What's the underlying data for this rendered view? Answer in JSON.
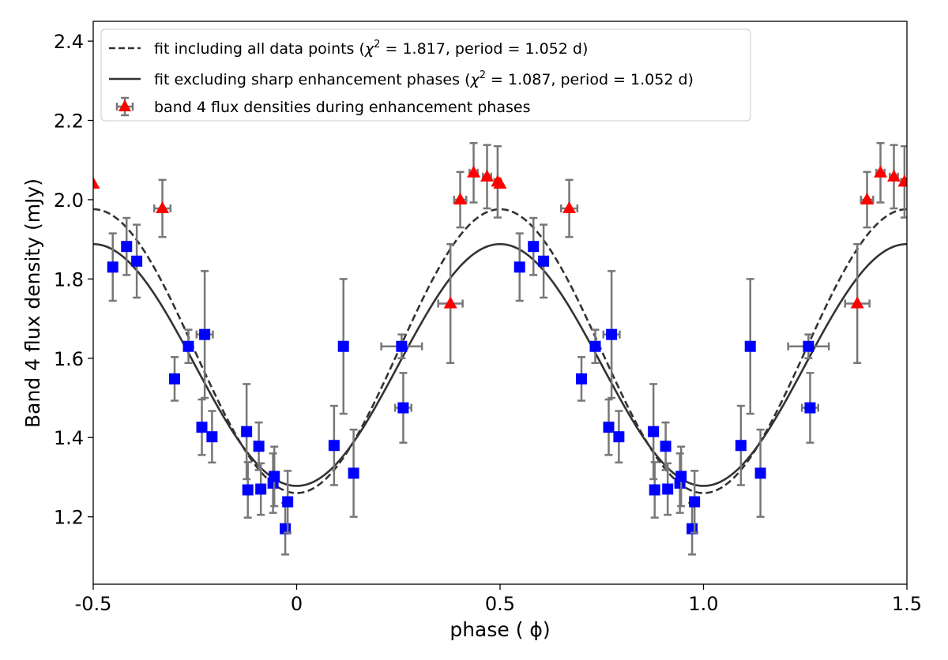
{
  "chart_data": {
    "type": "scatter",
    "title": "",
    "xlabel": "phase ( ϕ)",
    "ylabel": "Band 4 flux density (mJy)",
    "xlim": [
      -0.5,
      1.5
    ],
    "ylim": [
      1.03,
      2.45
    ],
    "grid": false,
    "x_ticks": [
      -0.5,
      0,
      0.5,
      1.0,
      1.5
    ],
    "x_tick_labels": [
      "-0.5",
      "0",
      "0.5",
      "1.0",
      "1.5"
    ],
    "y_ticks": [
      1.2,
      1.4,
      1.6,
      1.8,
      2.0,
      2.2,
      2.4
    ],
    "y_tick_labels": [
      "1.2",
      "1.4",
      "1.6",
      "1.8",
      "2.0",
      "2.2",
      "2.4"
    ],
    "legend_position": "top-left",
    "legend": [
      {
        "label_pre": "fit including all data points (",
        "chi": "χ",
        "sup": "2",
        "label_post": " = 1.817, period = 1.052 d)",
        "style": "dashed"
      },
      {
        "label_pre": "fit excluding sharp enhancement phases (",
        "chi": "χ",
        "sup": "2",
        "label_post": " = 1.087, period = 1.052 d)",
        "style": "solid"
      },
      {
        "label": "band 4 flux densities during enhancement phases",
        "style": "red-triangle"
      }
    ],
    "fits": [
      {
        "name": "fit including all data points",
        "mean": 1.618,
        "amplitude": 0.358,
        "phase_of_max": 0.5,
        "style": "dashed"
      },
      {
        "name": "fit excluding sharp enhancement phases",
        "mean": 1.583,
        "amplitude": 0.305,
        "phase_of_max": 0.5,
        "style": "solid"
      }
    ],
    "normal_points": {
      "name": "band 4 flux densities",
      "color": "#0000ff",
      "marker": "square",
      "points": [
        {
          "x": -0.452,
          "y": 1.83,
          "yerr": 0.085,
          "xerr": 0.005
        },
        {
          "x": -0.418,
          "y": 1.882,
          "yerr": 0.072,
          "xerr": 0.005
        },
        {
          "x": -0.393,
          "y": 1.845,
          "yerr": 0.092,
          "xerr": 0.005
        },
        {
          "x": -0.3,
          "y": 1.548,
          "yerr": 0.055,
          "xerr": 0.005
        },
        {
          "x": -0.266,
          "y": 1.63,
          "yerr": 0.042,
          "xerr": 0.01
        },
        {
          "x": -0.233,
          "y": 1.426,
          "yerr": 0.07,
          "xerr": 0.005
        },
        {
          "x": -0.226,
          "y": 1.66,
          "yerr": 0.16,
          "xerr": 0.02
        },
        {
          "x": -0.208,
          "y": 1.402,
          "yerr": 0.065,
          "xerr": 0.005
        },
        {
          "x": -0.123,
          "y": 1.415,
          "yerr": 0.12,
          "xerr": 0.005
        },
        {
          "x": -0.12,
          "y": 1.268,
          "yerr": 0.07,
          "xerr": 0.005
        },
        {
          "x": -0.093,
          "y": 1.378,
          "yerr": 0.06,
          "xerr": 0.005
        },
        {
          "x": -0.088,
          "y": 1.27,
          "yerr": 0.065,
          "xerr": 0.005
        },
        {
          "x": -0.058,
          "y": 1.285,
          "yerr": 0.075,
          "xerr": 0.005
        },
        {
          "x": -0.055,
          "y": 1.302,
          "yerr": 0.075,
          "xerr": 0.005
        },
        {
          "x": -0.028,
          "y": 1.17,
          "yerr": 0.065,
          "xerr": 0.005
        },
        {
          "x": -0.022,
          "y": 1.238,
          "yerr": 0.078,
          "xerr": 0.005
        },
        {
          "x": 0.092,
          "y": 1.38,
          "yerr": 0.1,
          "xerr": 0.005
        },
        {
          "x": 0.115,
          "y": 1.63,
          "yerr": 0.17,
          "xerr": 0.005
        },
        {
          "x": 0.14,
          "y": 1.31,
          "yerr": 0.11,
          "xerr": 0.005
        },
        {
          "x": 0.258,
          "y": 1.63,
          "yerr": 0.03,
          "xerr": 0.05
        },
        {
          "x": 0.262,
          "y": 1.475,
          "yerr": 0.088,
          "xerr": 0.02
        }
      ]
    },
    "enhancement_points": {
      "name": "band 4 flux densities during enhancement phases",
      "color": "#ff0000",
      "marker": "triangle",
      "points": [
        {
          "x": -0.5,
          "y": 2.04,
          "yerr": 0.0,
          "xerr": 0.0
        },
        {
          "x": -0.33,
          "y": 1.978,
          "yerr": 0.072,
          "xerr": 0.02
        },
        {
          "x": 0.378,
          "y": 1.738,
          "yerr": 0.15,
          "xerr": 0.03
        },
        {
          "x": 0.402,
          "y": 2.0,
          "yerr": 0.07,
          "xerr": 0.015
        },
        {
          "x": 0.435,
          "y": 2.068,
          "yerr": 0.075,
          "xerr": 0.01
        },
        {
          "x": 0.468,
          "y": 2.058,
          "yerr": 0.08,
          "xerr": 0.01
        },
        {
          "x": 0.494,
          "y": 2.045,
          "yerr": 0.09,
          "xerr": 0.008
        }
      ]
    }
  }
}
